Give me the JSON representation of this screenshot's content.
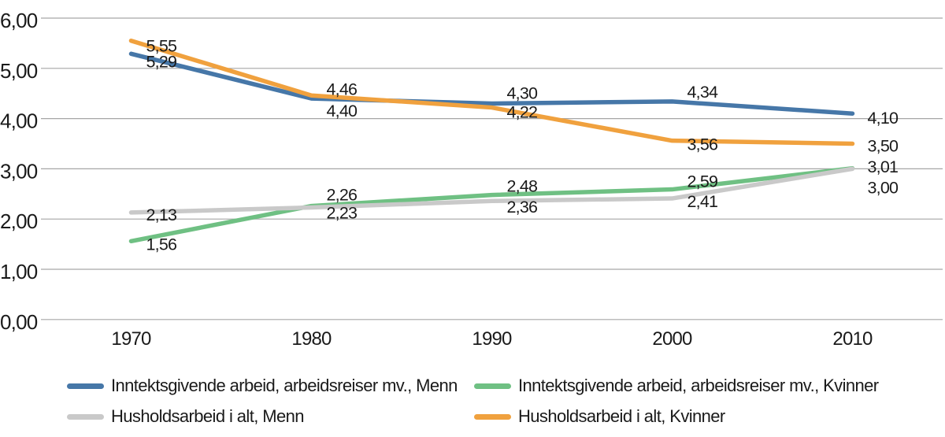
{
  "page": {
    "background": "#ffffff",
    "text_color": "#1a1a1a",
    "grid_color": "#a6a6a6"
  },
  "chart_data": {
    "type": "line",
    "title": "",
    "xlabel": "",
    "ylabel": "",
    "categories": [
      "1970",
      "1980",
      "1990",
      "2000",
      "2010"
    ],
    "ylim": [
      0,
      6
    ],
    "ytick_interval": 1,
    "ytick_labels": [
      "0,00",
      "1,00",
      "2,00",
      "3,00",
      "4,00",
      "5,00",
      "6,00"
    ],
    "grid": true,
    "legend_position": "bottom",
    "series": [
      {
        "name": "Inntektsgivende arbeid, arbeidsreiser mv., Menn",
        "color": "#4677A8",
        "values": [
          5.29,
          4.4,
          4.3,
          4.34,
          4.1
        ],
        "point_labels": [
          "5,29",
          "4,40",
          "4,30",
          "4,34",
          "4,10"
        ],
        "label_dy": [
          9,
          15,
          -14,
          -13,
          5
        ]
      },
      {
        "name": "Inntektsgivende arbeid, arbeidsreiser mv., Kvinner",
        "color": "#6FC083",
        "values": [
          1.56,
          2.26,
          2.48,
          2.59,
          3.01
        ],
        "point_labels": [
          "1,56",
          "2,26",
          "2,48",
          "2,59",
          "3,01"
        ],
        "label_dy": [
          3,
          -15,
          -12,
          -11,
          -3
        ]
      },
      {
        "name": "Husholdsarbeid i alt, Menn",
        "color": "#C9C9C9",
        "values": [
          2.13,
          2.23,
          2.36,
          2.41,
          3.0
        ],
        "point_labels": [
          "2,13",
          "2,23",
          "2,36",
          "2,41",
          "3,00"
        ],
        "label_dy": [
          2,
          6,
          7,
          3,
          23
        ]
      },
      {
        "name": "Husholdsarbeid i alt, Kvinner",
        "color": "#F0A13E",
        "values": [
          5.55,
          4.46,
          4.22,
          3.56,
          3.5
        ],
        "point_labels": [
          "5,55",
          "4,46",
          "4,22",
          "3,56",
          "3,50"
        ],
        "label_dy": [
          6,
          -9,
          5,
          4,
          2
        ]
      }
    ]
  }
}
